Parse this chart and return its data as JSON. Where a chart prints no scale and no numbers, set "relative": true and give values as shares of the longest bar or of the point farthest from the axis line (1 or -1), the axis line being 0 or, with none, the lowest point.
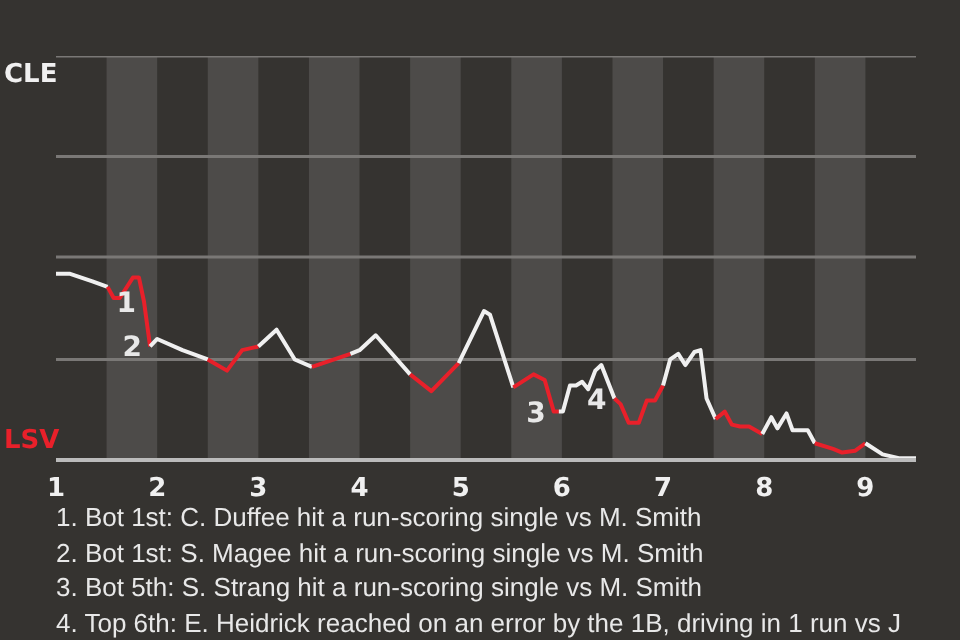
{
  "chart_data": {
    "type": "line",
    "relative": true,
    "xlim": [
      1,
      9.5
    ],
    "xticks": [
      1,
      2,
      3,
      4,
      5,
      6,
      7,
      8,
      9
    ],
    "ref_lines": [
      {
        "axis": "y",
        "value": 0.54,
        "color": "#7a7876"
      },
      {
        "axis": "y",
        "value": 1.09,
        "color": "#7a7876"
      },
      {
        "axis": "y",
        "value": 1.63,
        "color": "#7a7876"
      },
      {
        "axis": "y",
        "value": 2.17,
        "color": "#7a7876"
      }
    ],
    "legend": "left",
    "marker": "none",
    "line_style": "solid",
    "bands": [
      {
        "axis": "x",
        "from": 1.5,
        "to": 2,
        "color": "#4d4b49"
      },
      {
        "axis": "x",
        "from": 2.5,
        "to": 3,
        "color": "#4d4b49"
      },
      {
        "axis": "x",
        "from": 3.5,
        "to": 4,
        "color": "#4d4b49"
      },
      {
        "axis": "x",
        "from": 4.5,
        "to": 5,
        "color": "#4d4b49"
      },
      {
        "axis": "x",
        "from": 5.5,
        "to": 6,
        "color": "#4d4b49"
      },
      {
        "axis": "x",
        "from": 6.5,
        "to": 7,
        "color": "#4d4b49"
      },
      {
        "axis": "x",
        "from": 7.5,
        "to": 8,
        "color": "#4d4b49"
      },
      {
        "axis": "x",
        "from": 8.5,
        "to": 9,
        "color": "#4d4b49"
      }
    ],
    "series": [
      {
        "name": "CLE",
        "color": "#f0f0f0",
        "x": [
          1,
          1.14,
          1.36,
          1.51
        ],
        "values": [
          1,
          1,
          0.96,
          0.93
        ]
      },
      {
        "name": "LSV",
        "color": "#e8202a",
        "x": [
          1.51,
          1.57,
          1.63,
          1.76,
          1.82,
          1.87,
          1.93
        ],
        "values": [
          0.93,
          0.87,
          0.87,
          0.98,
          0.98,
          0.85,
          0.61
        ]
      },
      {
        "color": "#f0f0f0",
        "x": [
          1.93,
          2,
          2.25,
          2.5
        ],
        "values": [
          0.61,
          0.65,
          0.59,
          0.54
        ]
      },
      {
        "color": "#e8202a",
        "x": [
          2.5,
          2.69,
          2.84,
          3
        ],
        "values": [
          0.54,
          0.48,
          0.59,
          0.61
        ]
      },
      {
        "color": "#f0f0f0",
        "x": [
          3,
          3.18,
          3.36,
          3.53
        ],
        "values": [
          0.61,
          0.7,
          0.54,
          0.5
        ]
      },
      {
        "color": "#e8202a",
        "x": [
          3.53,
          3.91
        ],
        "values": [
          0.5,
          0.57
        ]
      },
      {
        "color": "#f0f0f0",
        "x": [
          3.91,
          4,
          4.16,
          4.5
        ],
        "values": [
          0.57,
          0.59,
          0.67,
          0.46
        ]
      },
      {
        "color": "#e8202a",
        "x": [
          4.5,
          4.71,
          4.98
        ],
        "values": [
          0.46,
          0.37,
          0.52
        ]
      },
      {
        "color": "#f0f0f0",
        "x": [
          4.98,
          5.23,
          5.29,
          5.52
        ],
        "values": [
          0.52,
          0.8,
          0.78,
          0.39
        ]
      },
      {
        "color": "#e8202a",
        "x": [
          5.52,
          5.72,
          5.83,
          5.92,
          5.97
        ],
        "values": [
          0.39,
          0.46,
          0.43,
          0.26,
          0.26
        ]
      },
      {
        "color": "#f0f0f0",
        "x": [
          5.97,
          6.01,
          6.08,
          6.14,
          6.2,
          6.26,
          6.33,
          6.39,
          6.52
        ],
        "values": [
          0.26,
          0.26,
          0.4,
          0.4,
          0.42,
          0.38,
          0.48,
          0.51,
          0.33
        ]
      },
      {
        "color": "#e8202a",
        "x": [
          6.52,
          6.58,
          6.66,
          6.76,
          6.84,
          6.92,
          7
        ],
        "values": [
          0.33,
          0.3,
          0.2,
          0.2,
          0.32,
          0.32,
          0.4
        ]
      },
      {
        "color": "#f0f0f0",
        "x": [
          7,
          7.07,
          7.15,
          7.22,
          7.31,
          7.37,
          7.43,
          7.52
        ],
        "values": [
          0.4,
          0.54,
          0.57,
          0.51,
          0.58,
          0.59,
          0.33,
          0.22
        ]
      },
      {
        "color": "#e8202a",
        "x": [
          7.52,
          7.61,
          7.68,
          7.76,
          7.85,
          7.98
        ],
        "values": [
          0.22,
          0.26,
          0.19,
          0.18,
          0.18,
          0.14
        ]
      },
      {
        "color": "#f0f0f0",
        "x": [
          7.98,
          8.07,
          8.13,
          8.22,
          8.28,
          8.43,
          8.5
        ],
        "values": [
          0.14,
          0.23,
          0.17,
          0.25,
          0.16,
          0.16,
          0.09
        ]
      },
      {
        "color": "#e8202a",
        "x": [
          8.5,
          8.68,
          8.77,
          8.9,
          9
        ],
        "values": [
          0.09,
          0.06,
          0.04,
          0.05,
          0.09
        ]
      },
      {
        "color": "#f0f0f0",
        "x": [
          9,
          9.17,
          9.33,
          9.5
        ],
        "values": [
          0.09,
          0.03,
          0.01,
          0.01
        ]
      }
    ],
    "annotations": [
      {
        "text": "1",
        "x": 1.87,
        "y": 0.85
      },
      {
        "text": "2",
        "x": 1.93,
        "y": 0.61
      },
      {
        "text": "3",
        "x": 5.92,
        "y": 0.26
      },
      {
        "text": "4",
        "x": 6.52,
        "y": 0.33
      },
      "1. Bot 1st: C. Duffee hit a run-scoring single vs M. Smith",
      "2. Bot 1st: S. Magee hit a run-scoring single vs M. Smith",
      "3. Bot 5th: S. Strang hit a run-scoring single vs M. Smith",
      "4. Top 6th: E. Heidrick reached on an error by the 1B, driving in 1 run vs J"
    ]
  }
}
